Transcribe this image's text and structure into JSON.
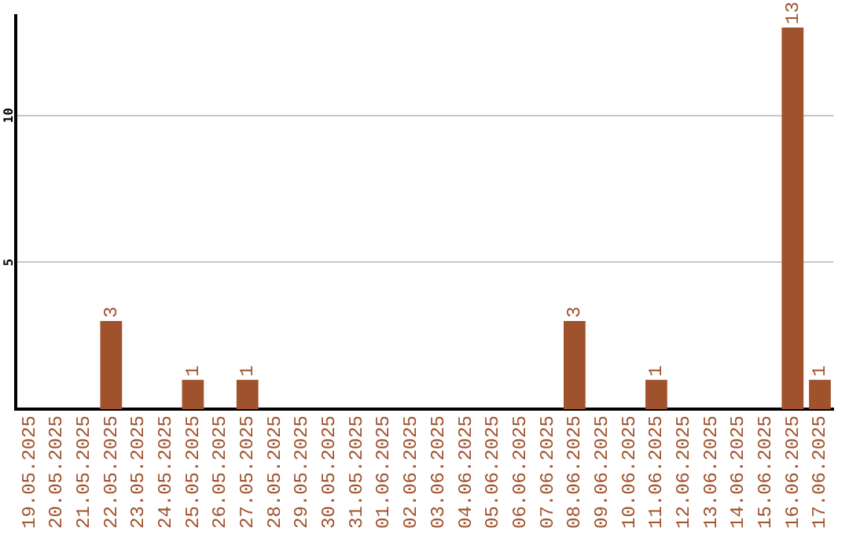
{
  "chart_data": {
    "type": "bar",
    "categories": [
      "19.05.2025",
      "20.05.2025",
      "21.05.2025",
      "22.05.2025",
      "23.05.2025",
      "24.05.2025",
      "25.05.2025",
      "26.05.2025",
      "27.05.2025",
      "28.05.2025",
      "29.05.2025",
      "30.05.2025",
      "31.05.2025",
      "01.06.2025",
      "02.06.2025",
      "03.06.2025",
      "04.06.2025",
      "05.06.2025",
      "06.06.2025",
      "07.06.2025",
      "08.06.2025",
      "09.06.2025",
      "10.06.2025",
      "11.06.2025",
      "12.06.2025",
      "13.06.2025",
      "14.06.2025",
      "15.06.2025",
      "16.06.2025",
      "17.06.2025"
    ],
    "values": [
      0,
      0,
      0,
      3,
      0,
      0,
      1,
      0,
      1,
      0,
      0,
      0,
      0,
      0,
      0,
      0,
      0,
      0,
      0,
      0,
      3,
      0,
      0,
      1,
      0,
      0,
      0,
      0,
      13,
      1
    ],
    "value_labels": [
      null,
      null,
      null,
      "3",
      null,
      null,
      "1",
      null,
      "1",
      null,
      null,
      null,
      null,
      null,
      null,
      null,
      null,
      null,
      null,
      null,
      "3",
      null,
      null,
      "1",
      null,
      null,
      null,
      null,
      "13",
      "1"
    ],
    "color": "#a0522d",
    "ylim": [
      0,
      13.4
    ],
    "yticks": [
      5,
      10
    ],
    "grid": "y"
  }
}
